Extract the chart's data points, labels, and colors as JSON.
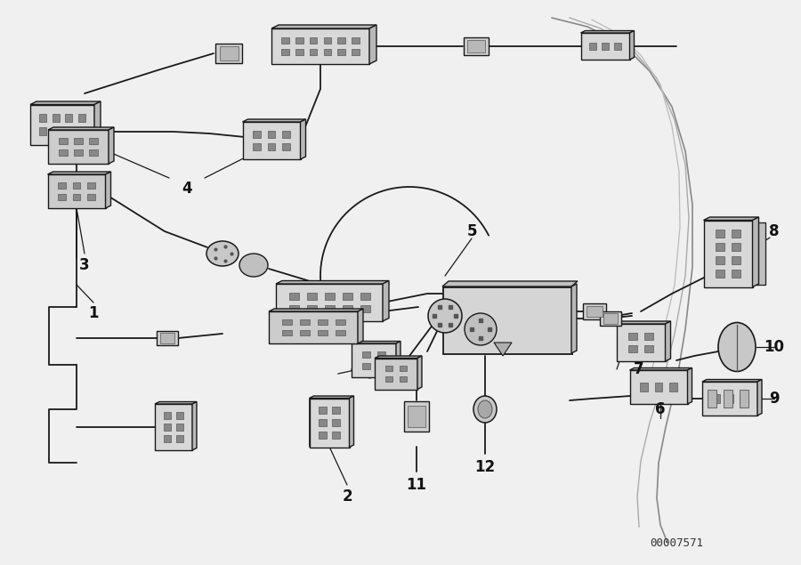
{
  "bg_color": "#f0f0f0",
  "line_color": "#1a1a1a",
  "fill_light": "#e8e8e8",
  "fill_mid": "#d0d0d0",
  "fill_dark": "#b0b0b0",
  "watermark": "00007571",
  "label_color": "#111111",
  "lw_wire": 1.3,
  "lw_comp": 1.1,
  "label_fs": 12,
  "wm_fs": 9
}
